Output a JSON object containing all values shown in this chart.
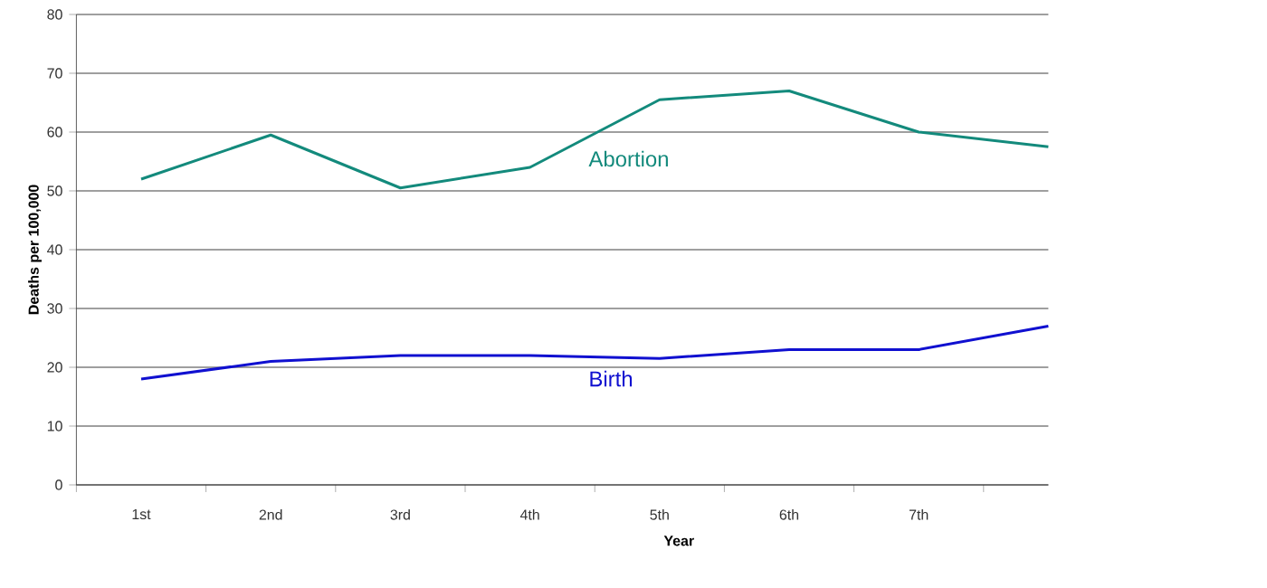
{
  "chart_data": {
    "type": "line",
    "xlabel": "Year",
    "ylabel": "Deaths per 100,000",
    "categories": [
      "1st",
      "2nd",
      "3rd",
      "4th",
      "5th",
      "6th",
      "7th",
      null
    ],
    "series": [
      {
        "name": "Abortion",
        "color": "#138a7c",
        "values": [
          52,
          59.5,
          50.5,
          54,
          65.5,
          67,
          60,
          57.5
        ]
      },
      {
        "name": "Birth",
        "color": "#1010d0",
        "values": [
          18,
          21,
          22,
          22,
          21.5,
          23,
          23,
          27
        ]
      }
    ],
    "ylim": [
      0,
      80
    ],
    "yticks": [
      0,
      10,
      20,
      30,
      40,
      50,
      60,
      70,
      80
    ],
    "grid": "y",
    "marker": "none",
    "line_style": "solid"
  }
}
